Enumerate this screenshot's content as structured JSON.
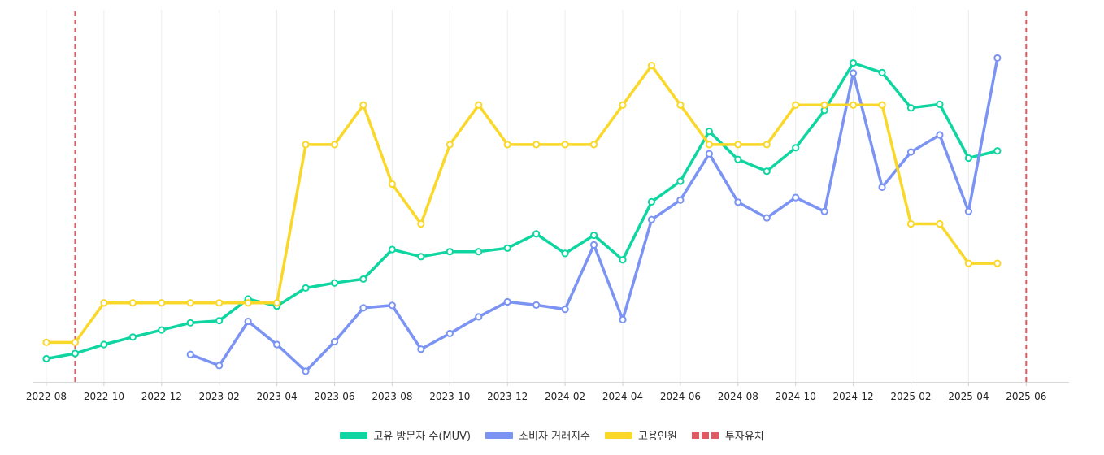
{
  "chart_data": {
    "type": "line",
    "title": "",
    "xlabel": "",
    "ylabel": "",
    "x_ticks": [
      "2022-08",
      "2022-10",
      "2022-12",
      "2023-02",
      "2023-04",
      "2023-06",
      "2023-08",
      "2023-10",
      "2023-12",
      "2024-02",
      "2024-04",
      "2024-06",
      "2024-08",
      "2024-10",
      "2024-12",
      "2025-02",
      "2025-04",
      "2025-06"
    ],
    "months": [
      "2022-08",
      "2022-09",
      "2022-10",
      "2022-11",
      "2022-12",
      "2023-01",
      "2023-02",
      "2023-03",
      "2023-04",
      "2023-05",
      "2023-06",
      "2023-07",
      "2023-08",
      "2023-09",
      "2023-10",
      "2023-11",
      "2023-12",
      "2024-01",
      "2024-02",
      "2024-03",
      "2024-04",
      "2024-05",
      "2024-06",
      "2024-07",
      "2024-08",
      "2024-09",
      "2024-10",
      "2024-11",
      "2024-12",
      "2025-01",
      "2025-02",
      "2025-03",
      "2025-04",
      "2025-05",
      "2025-06"
    ],
    "ylim": [
      0,
      100
    ],
    "grid": "vertical",
    "legend_position": "bottom",
    "series": [
      {
        "name": "고유 방문자 수(MUV)",
        "color": "#0fd6a0",
        "start_index": 0,
        "values": [
          6.5,
          8,
          10.5,
          12.6,
          14.6,
          16.6,
          17.2,
          23.3,
          21.3,
          26.4,
          27.8,
          28.9,
          37.2,
          35.2,
          36.6,
          36.6,
          37.6,
          41.6,
          36.1,
          41.2,
          34.3,
          50.6,
          56.4,
          70.4,
          62.5,
          59.2,
          65.8,
          76.3,
          89.6,
          86.9,
          77,
          78,
          62.9,
          64.9
        ]
      },
      {
        "name": "소비자 거래지수",
        "color": "#7b93f2",
        "start_index": 5,
        "values": [
          7.7,
          4.6,
          17,
          10.5,
          3,
          11.3,
          20.8,
          21.5,
          9.2,
          13.6,
          18.3,
          22.5,
          21.6,
          20.4,
          38.5,
          17.5,
          45.6,
          51.1,
          64.1,
          50.5,
          46.1,
          51.8,
          47.9,
          86.8,
          54.7,
          64.6,
          69.4,
          47.9,
          91
        ]
      },
      {
        "name": "고용인원",
        "color": "#fad829",
        "start_index": 0,
        "values": [
          11.1,
          11.1,
          22.2,
          22.2,
          22.2,
          22.2,
          22.2,
          22.2,
          22.2,
          66.7,
          66.7,
          77.8,
          55.6,
          44.4,
          66.7,
          77.8,
          66.7,
          66.7,
          66.7,
          66.7,
          77.8,
          88.9,
          77.8,
          66.7,
          66.7,
          66.7,
          77.8,
          77.8,
          77.8,
          77.8,
          44.4,
          44.4,
          33.3,
          33.3
        ]
      }
    ],
    "markers": {
      "name": "투자유치",
      "color": "#e05a63",
      "dates": [
        "2022-09",
        "2025-06"
      ]
    }
  }
}
